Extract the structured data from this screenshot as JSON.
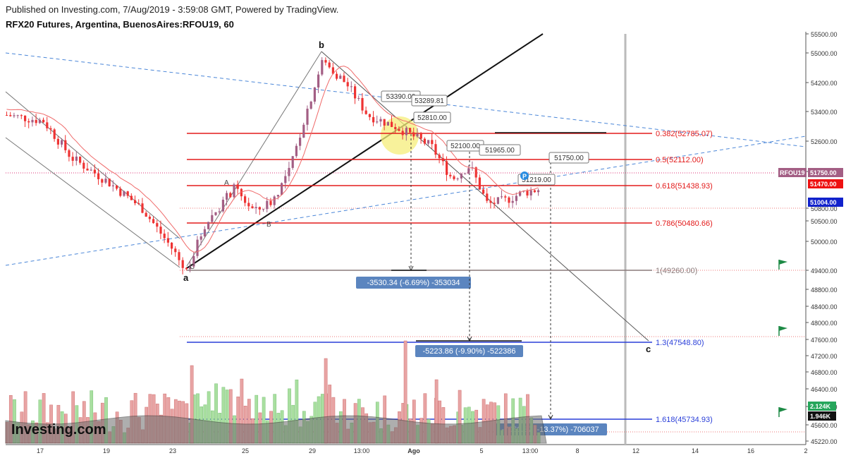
{
  "header": {
    "published": "Published on Investing.com, 7/Aug/2019 - 3:59:08 GMT, Powered by TradingView.",
    "symbol_title": "RFX20 Futures, Argentina, BuenosAires:RFOU19, 60"
  },
  "chart_data": {
    "type": "candlestick",
    "symbol": "RFOU19",
    "interval": "60",
    "y_axis": {
      "ticks": [
        55500,
        55000,
        54200,
        53400,
        52600,
        51800,
        50800,
        50500,
        50000,
        49400,
        48800,
        48400,
        48000,
        47600,
        47200,
        46800,
        46400,
        46000,
        45600,
        45220
      ]
    },
    "x_axis": {
      "ticks": [
        "17",
        "19",
        "23",
        "25",
        "29",
        "13:00",
        "Ago",
        "5",
        "13:00",
        "8",
        "12",
        "14",
        "16",
        "2"
      ]
    },
    "price_labels": [
      {
        "text": "RFOU19",
        "value": "51750.00",
        "color": "#a35e84"
      },
      {
        "text": "",
        "value": "51470.00",
        "color": "#ee1111"
      },
      {
        "text": "",
        "value": "51004.00",
        "color": "#1122cc"
      }
    ],
    "volume_labels": [
      {
        "value": "2.124K",
        "color": "#26a65b"
      },
      {
        "value": "1.946K",
        "color": "#111111"
      }
    ],
    "fib_levels": [
      {
        "label": "0.382(52785.07)",
        "color": "#e31b1b"
      },
      {
        "label": "0.5(52112.00)",
        "color": "#e31b1b"
      },
      {
        "label": "0.618(51438.93)",
        "color": "#e31b1b"
      },
      {
        "label": "0.786(50480.66)",
        "color": "#e31b1b"
      },
      {
        "label": "1(49260.00)",
        "color": "#8a7a7a"
      },
      {
        "label": "1.3(47548.80)",
        "color": "#2a3fd9"
      },
      {
        "label": "1.618(45734.93)",
        "color": "#2a3fd9"
      }
    ],
    "price_notes": [
      "53390.00",
      "53289.81",
      "52810.00",
      "52100.00",
      "51965.00",
      "51750.00",
      "51219.00"
    ],
    "measures": [
      "-3530.34 (-6.69%) -353034",
      "-5223.86 (-9.90%) -522386",
      "-7060.37 (-13.37%) -706037"
    ],
    "wave_labels": [
      "a",
      "b",
      "c",
      "A",
      "B",
      "C"
    ],
    "watermark": "Investing.com"
  }
}
